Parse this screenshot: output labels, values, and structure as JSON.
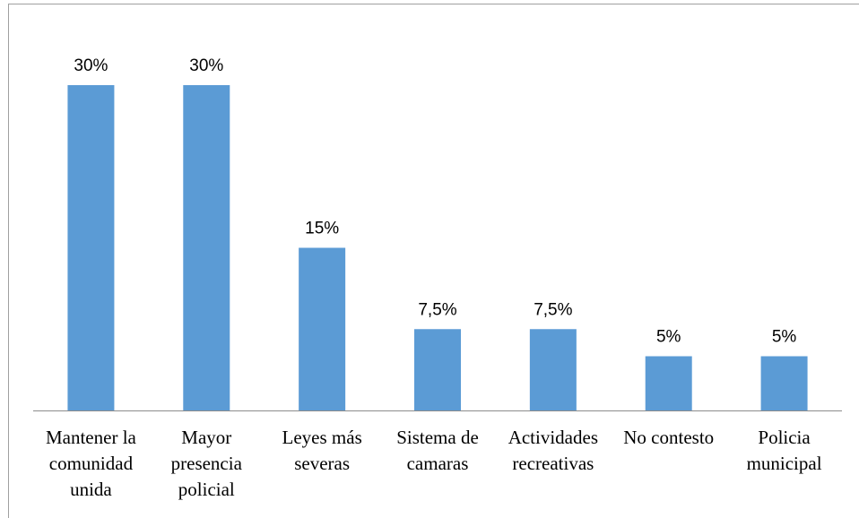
{
  "chart_data": {
    "type": "bar",
    "categories": [
      "Mantener la comunidad unida",
      "Mayor presencia policial",
      "Leyes más severas",
      "Sistema de camaras",
      "Actividades recreativas",
      "No contesto",
      "Policia municipal"
    ],
    "values": [
      30,
      30,
      15,
      7.5,
      7.5,
      5,
      5
    ],
    "value_labels": [
      "30%",
      "30%",
      "15%",
      "7,5%",
      "7,5%",
      "5%",
      "5%"
    ],
    "color": "#5b9bd5"
  }
}
